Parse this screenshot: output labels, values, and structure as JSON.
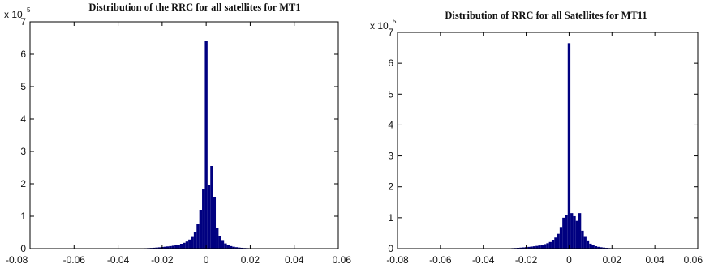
{
  "colors": {
    "bar": "#000080",
    "axis": "#000000",
    "text": "#111111",
    "background": "#ffffff"
  },
  "chart_data": [
    {
      "type": "bar",
      "title": "Distribution of the RRC for all satellites for MT1",
      "xlabel": "",
      "ylabel": "",
      "xlim": [
        -0.08,
        0.06
      ],
      "ylim": [
        0,
        700000
      ],
      "y_exponent_label": "x 10",
      "y_exponent_power": "5",
      "x_ticks": [
        -0.08,
        -0.06,
        -0.04,
        -0.02,
        0,
        0.02,
        0.04,
        0.06
      ],
      "x_tick_labels": [
        "-0.08",
        "-0.06",
        "-0.04",
        "-0.02",
        "0",
        "0.02",
        "0.04",
        "0.06"
      ],
      "y_ticks": [
        0,
        100000,
        200000,
        300000,
        400000,
        500000,
        600000,
        700000
      ],
      "y_tick_labels": [
        "0",
        "1",
        "2",
        "3",
        "4",
        "5",
        "6",
        "7"
      ],
      "grid": false,
      "box": true,
      "bin_width": 0.00125,
      "bins": [
        {
          "x": -0.03125,
          "y": 600
        },
        {
          "x": -0.03,
          "y": 900
        },
        {
          "x": -0.02875,
          "y": 1100
        },
        {
          "x": -0.0275,
          "y": 1400
        },
        {
          "x": -0.02625,
          "y": 1800
        },
        {
          "x": -0.025,
          "y": 2200
        },
        {
          "x": -0.02375,
          "y": 2700
        },
        {
          "x": -0.0225,
          "y": 3300
        },
        {
          "x": -0.02125,
          "y": 4000
        },
        {
          "x": -0.02,
          "y": 5000
        },
        {
          "x": -0.01875,
          "y": 5800
        },
        {
          "x": -0.0175,
          "y": 6800
        },
        {
          "x": -0.01625,
          "y": 7800
        },
        {
          "x": -0.015,
          "y": 9000
        },
        {
          "x": -0.01375,
          "y": 10500
        },
        {
          "x": -0.0125,
          "y": 12500
        },
        {
          "x": -0.01125,
          "y": 15000
        },
        {
          "x": -0.01,
          "y": 18000
        },
        {
          "x": -0.00875,
          "y": 22000
        },
        {
          "x": -0.0075,
          "y": 28000
        },
        {
          "x": -0.00625,
          "y": 36000
        },
        {
          "x": -0.005,
          "y": 50000
        },
        {
          "x": -0.00375,
          "y": 75000
        },
        {
          "x": -0.0025,
          "y": 120000
        },
        {
          "x": -0.00125,
          "y": 185000
        },
        {
          "x": 0.0,
          "y": 640000
        },
        {
          "x": 0.00125,
          "y": 195000
        },
        {
          "x": 0.0025,
          "y": 255000
        },
        {
          "x": 0.00375,
          "y": 160000
        },
        {
          "x": 0.005,
          "y": 65000
        },
        {
          "x": 0.00625,
          "y": 38000
        },
        {
          "x": 0.0075,
          "y": 24000
        },
        {
          "x": 0.00875,
          "y": 16000
        },
        {
          "x": 0.01,
          "y": 11000
        },
        {
          "x": 0.01125,
          "y": 7800
        },
        {
          "x": 0.0125,
          "y": 5800
        },
        {
          "x": 0.01375,
          "y": 4400
        },
        {
          "x": 0.015,
          "y": 3300
        },
        {
          "x": 0.01625,
          "y": 2600
        },
        {
          "x": 0.0175,
          "y": 2000
        },
        {
          "x": 0.01875,
          "y": 1600
        },
        {
          "x": 0.02,
          "y": 1200
        },
        {
          "x": 0.02125,
          "y": 900
        },
        {
          "x": 0.0225,
          "y": 700
        }
      ]
    },
    {
      "type": "bar",
      "title": "Distribution of RRC for all Satellites for MT11",
      "xlabel": "",
      "ylabel": "",
      "xlim": [
        -0.08,
        0.06
      ],
      "ylim": [
        0,
        700000
      ],
      "y_exponent_label": "x 10",
      "y_exponent_power": "5",
      "x_ticks": [
        -0.08,
        -0.06,
        -0.04,
        -0.02,
        0,
        0.02,
        0.04,
        0.06
      ],
      "x_tick_labels": [
        "-0.08",
        "-0.06",
        "-0.04",
        "-0.02",
        "0",
        "0.02",
        "0.04",
        "0.06"
      ],
      "y_ticks": [
        0,
        100000,
        200000,
        300000,
        400000,
        500000,
        600000,
        700000
      ],
      "y_tick_labels": [
        "0",
        "1",
        "2",
        "3",
        "4",
        "5",
        "6",
        "7"
      ],
      "grid": false,
      "box": true,
      "bin_width": 0.00125,
      "bins": [
        {
          "x": -0.03125,
          "y": 500
        },
        {
          "x": -0.03,
          "y": 800
        },
        {
          "x": -0.02875,
          "y": 1000
        },
        {
          "x": -0.0275,
          "y": 1300
        },
        {
          "x": -0.02625,
          "y": 1700
        },
        {
          "x": -0.025,
          "y": 2100
        },
        {
          "x": -0.02375,
          "y": 2600
        },
        {
          "x": -0.0225,
          "y": 3200
        },
        {
          "x": -0.02125,
          "y": 3900
        },
        {
          "x": -0.02,
          "y": 4700
        },
        {
          "x": -0.01875,
          "y": 5600
        },
        {
          "x": -0.0175,
          "y": 6600
        },
        {
          "x": -0.01625,
          "y": 7600
        },
        {
          "x": -0.015,
          "y": 8800
        },
        {
          "x": -0.01375,
          "y": 10200
        },
        {
          "x": -0.0125,
          "y": 12000
        },
        {
          "x": -0.01125,
          "y": 14500
        },
        {
          "x": -0.01,
          "y": 17500
        },
        {
          "x": -0.00875,
          "y": 21500
        },
        {
          "x": -0.0075,
          "y": 27000
        },
        {
          "x": -0.00625,
          "y": 36000
        },
        {
          "x": -0.005,
          "y": 48000
        },
        {
          "x": -0.00375,
          "y": 70000
        },
        {
          "x": -0.0025,
          "y": 100000
        },
        {
          "x": -0.00125,
          "y": 110000
        },
        {
          "x": 0.0,
          "y": 665000
        },
        {
          "x": 0.00125,
          "y": 115000
        },
        {
          "x": 0.0025,
          "y": 105000
        },
        {
          "x": 0.00375,
          "y": 90000
        },
        {
          "x": 0.005,
          "y": 115000
        },
        {
          "x": 0.00625,
          "y": 58000
        },
        {
          "x": 0.0075,
          "y": 38000
        },
        {
          "x": 0.00875,
          "y": 24000
        },
        {
          "x": 0.01,
          "y": 16000
        },
        {
          "x": 0.01125,
          "y": 11000
        },
        {
          "x": 0.0125,
          "y": 7800
        },
        {
          "x": 0.01375,
          "y": 5800
        },
        {
          "x": 0.015,
          "y": 4400
        },
        {
          "x": 0.01625,
          "y": 3300
        },
        {
          "x": 0.0175,
          "y": 2500
        },
        {
          "x": 0.01875,
          "y": 1900
        },
        {
          "x": 0.02,
          "y": 1400
        },
        {
          "x": 0.02125,
          "y": 1000
        },
        {
          "x": 0.0225,
          "y": 700
        }
      ]
    }
  ]
}
